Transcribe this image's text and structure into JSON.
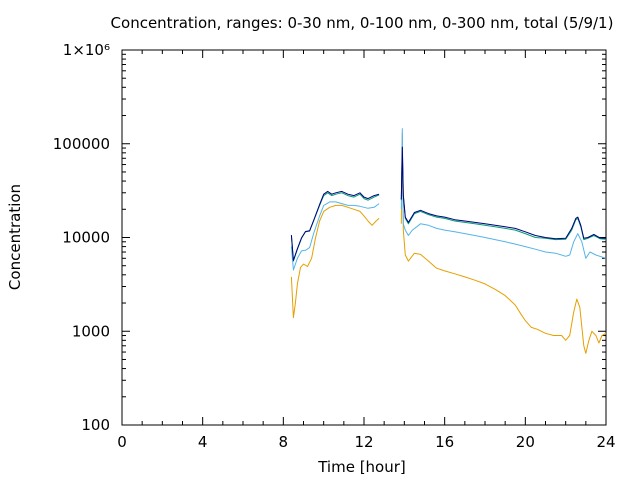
{
  "chart_data": {
    "type": "line",
    "title": "Concentration, ranges: 0-30 nm, 0-100 nm, 0-300 nm, total (5/9/1)",
    "xlabel": "Time [hour]",
    "ylabel": "Concentration",
    "xlim": [
      0,
      24
    ],
    "ylim": [
      100,
      1000000
    ],
    "y_scale": "log",
    "grid": false,
    "legend": "none",
    "x_ticks": [
      0,
      4,
      8,
      12,
      16,
      20,
      24
    ],
    "x_tick_labels": [
      "0",
      "4",
      "8",
      "12",
      "16",
      "20",
      "24"
    ],
    "y_ticks": [
      100,
      1000,
      10000,
      100000,
      1000000
    ],
    "y_tick_labels": [
      "100",
      "1000",
      "10000",
      "100000",
      "1×10⁶"
    ],
    "series": [
      {
        "color": "#e69f00",
        "segments": [
          [
            [
              8.4,
              3800
            ],
            [
              8.5,
              1400
            ],
            [
              8.6,
              2000
            ],
            [
              8.7,
              3200
            ],
            [
              8.85,
              4800
            ],
            [
              9.0,
              5200
            ],
            [
              9.2,
              4900
            ],
            [
              9.4,
              6000
            ],
            [
              9.6,
              10000
            ],
            [
              9.8,
              15000
            ],
            [
              10.0,
              19000
            ],
            [
              10.3,
              21000
            ],
            [
              10.6,
              22000
            ],
            [
              10.9,
              22000
            ],
            [
              11.2,
              21000
            ],
            [
              11.5,
              20000
            ],
            [
              11.8,
              19000
            ],
            [
              12.0,
              17000
            ],
            [
              12.2,
              15000
            ],
            [
              12.4,
              13500
            ],
            [
              12.6,
              15000
            ],
            [
              12.75,
              16000
            ]
          ],
          [
            [
              13.85,
              14000
            ],
            [
              13.9,
              130000
            ],
            [
              13.95,
              12000
            ],
            [
              14.05,
              6500
            ],
            [
              14.2,
              5600
            ],
            [
              14.5,
              6800
            ],
            [
              14.8,
              6600
            ],
            [
              15.2,
              5600
            ],
            [
              15.6,
              4700
            ],
            [
              16.0,
              4400
            ],
            [
              16.5,
              4100
            ],
            [
              17.0,
              3800
            ],
            [
              17.5,
              3500
            ],
            [
              18.0,
              3200
            ],
            [
              18.5,
              2800
            ],
            [
              19.0,
              2400
            ],
            [
              19.5,
              1900
            ],
            [
              19.8,
              1500
            ],
            [
              20.0,
              1300
            ],
            [
              20.3,
              1100
            ],
            [
              20.6,
              1050
            ],
            [
              21.0,
              950
            ],
            [
              21.4,
              900
            ],
            [
              21.8,
              900
            ],
            [
              22.0,
              800
            ],
            [
              22.2,
              900
            ],
            [
              22.4,
              1600
            ],
            [
              22.55,
              2200
            ],
            [
              22.7,
              1800
            ],
            [
              22.9,
              700
            ],
            [
              23.0,
              580
            ],
            [
              23.15,
              800
            ],
            [
              23.3,
              1000
            ],
            [
              23.5,
              900
            ],
            [
              23.65,
              750
            ],
            [
              23.8,
              900
            ],
            [
              24.0,
              950
            ]
          ]
        ]
      },
      {
        "color": "#56b4e9",
        "segments": [
          [
            [
              8.4,
              8000
            ],
            [
              8.5,
              4500
            ],
            [
              8.7,
              6000
            ],
            [
              8.9,
              7200
            ],
            [
              9.1,
              7300
            ],
            [
              9.3,
              7800
            ],
            [
              9.5,
              11000
            ],
            [
              9.8,
              17000
            ],
            [
              10.0,
              22000
            ],
            [
              10.3,
              24000
            ],
            [
              10.6,
              24000
            ],
            [
              10.9,
              23000
            ],
            [
              11.2,
              22000
            ],
            [
              11.5,
              22000
            ],
            [
              11.8,
              21500
            ],
            [
              12.0,
              21000
            ],
            [
              12.2,
              20500
            ],
            [
              12.5,
              21000
            ],
            [
              12.75,
              23000
            ]
          ],
          [
            [
              13.85,
              20000
            ],
            [
              13.9,
              145000
            ],
            [
              13.95,
              14000
            ],
            [
              14.05,
              12000
            ],
            [
              14.2,
              10500
            ],
            [
              14.4,
              12000
            ],
            [
              14.8,
              14000
            ],
            [
              15.2,
              13500
            ],
            [
              15.6,
              12500
            ],
            [
              16.0,
              12000
            ],
            [
              16.5,
              11500
            ],
            [
              17.0,
              11000
            ],
            [
              17.5,
              10500
            ],
            [
              18.0,
              10000
            ],
            [
              18.5,
              9500
            ],
            [
              19.0,
              9000
            ],
            [
              19.5,
              8500
            ],
            [
              20.0,
              8000
            ],
            [
              20.5,
              7500
            ],
            [
              21.0,
              7000
            ],
            [
              21.5,
              6800
            ],
            [
              22.0,
              6300
            ],
            [
              22.2,
              6500
            ],
            [
              22.4,
              9000
            ],
            [
              22.6,
              11000
            ],
            [
              22.8,
              9000
            ],
            [
              23.0,
              6000
            ],
            [
              23.2,
              7000
            ],
            [
              23.5,
              6500
            ],
            [
              24.0,
              6000
            ]
          ]
        ]
      },
      {
        "color": "#009e73",
        "segments": [
          [
            [
              8.4,
              10500
            ],
            [
              8.5,
              5600
            ],
            [
              8.7,
              7500
            ],
            [
              8.9,
              9800
            ],
            [
              9.1,
              11500
            ],
            [
              9.3,
              11700
            ],
            [
              9.5,
              15000
            ],
            [
              9.8,
              22000
            ],
            [
              10.0,
              28000
            ],
            [
              10.2,
              30000
            ],
            [
              10.4,
              28000
            ],
            [
              10.6,
              29000
            ],
            [
              10.9,
              30000
            ],
            [
              11.2,
              28000
            ],
            [
              11.5,
              27000
            ],
            [
              11.8,
              29000
            ],
            [
              12.0,
              26000
            ],
            [
              12.2,
              25000
            ],
            [
              12.5,
              27000
            ],
            [
              12.75,
              28500
            ]
          ],
          [
            [
              13.85,
              25000
            ],
            [
              13.9,
              90000
            ],
            [
              13.95,
              28000
            ],
            [
              14.05,
              16000
            ],
            [
              14.2,
              14000
            ],
            [
              14.5,
              18000
            ],
            [
              14.8,
              19000
            ],
            [
              15.2,
              17500
            ],
            [
              15.6,
              16500
            ],
            [
              16.0,
              16000
            ],
            [
              16.5,
              15000
            ],
            [
              17.0,
              14500
            ],
            [
              17.5,
              14000
            ],
            [
              18.0,
              13500
            ],
            [
              18.5,
              13000
            ],
            [
              19.0,
              12500
            ],
            [
              19.5,
              12000
            ],
            [
              20.0,
              11000
            ],
            [
              20.5,
              10000
            ],
            [
              21.0,
              9800
            ],
            [
              21.5,
              9500
            ],
            [
              22.0,
              9600
            ],
            [
              22.3,
              12000
            ],
            [
              22.5,
              15500
            ],
            [
              22.6,
              16000
            ],
            [
              22.75,
              13000
            ],
            [
              22.9,
              9500
            ],
            [
              23.1,
              9800
            ],
            [
              23.4,
              10500
            ],
            [
              23.7,
              9700
            ],
            [
              24.0,
              9600
            ]
          ]
        ]
      },
      {
        "color": "#000080",
        "segments": [
          [
            [
              8.4,
              10600
            ],
            [
              8.5,
              5700
            ],
            [
              8.7,
              7600
            ],
            [
              8.9,
              9900
            ],
            [
              9.1,
              11600
            ],
            [
              9.3,
              11800
            ],
            [
              9.5,
              15200
            ],
            [
              9.8,
              22500
            ],
            [
              10.0,
              29000
            ],
            [
              10.2,
              31000
            ],
            [
              10.4,
              29000
            ],
            [
              10.6,
              30000
            ],
            [
              10.9,
              31000
            ],
            [
              11.2,
              29000
            ],
            [
              11.5,
              28000
            ],
            [
              11.8,
              30000
            ],
            [
              12.0,
              27000
            ],
            [
              12.2,
              26000
            ],
            [
              12.5,
              28000
            ],
            [
              12.75,
              29000
            ]
          ],
          [
            [
              13.85,
              25500
            ],
            [
              13.9,
              92000
            ],
            [
              13.95,
              28500
            ],
            [
              14.05,
              16500
            ],
            [
              14.2,
              14500
            ],
            [
              14.5,
              18500
            ],
            [
              14.8,
              19500
            ],
            [
              15.2,
              18000
            ],
            [
              15.6,
              17000
            ],
            [
              16.0,
              16500
            ],
            [
              16.5,
              15500
            ],
            [
              17.0,
              15000
            ],
            [
              17.5,
              14500
            ],
            [
              18.0,
              14000
            ],
            [
              18.5,
              13500
            ],
            [
              19.0,
              13000
            ],
            [
              19.5,
              12500
            ],
            [
              20.0,
              11500
            ],
            [
              20.5,
              10500
            ],
            [
              21.0,
              10000
            ],
            [
              21.5,
              9700
            ],
            [
              22.0,
              9800
            ],
            [
              22.3,
              12500
            ],
            [
              22.5,
              16000
            ],
            [
              22.6,
              16500
            ],
            [
              22.75,
              13500
            ],
            [
              22.9,
              9800
            ],
            [
              23.1,
              10000
            ],
            [
              23.4,
              10800
            ],
            [
              23.7,
              9900
            ],
            [
              24.0,
              9800
            ]
          ]
        ]
      }
    ]
  }
}
